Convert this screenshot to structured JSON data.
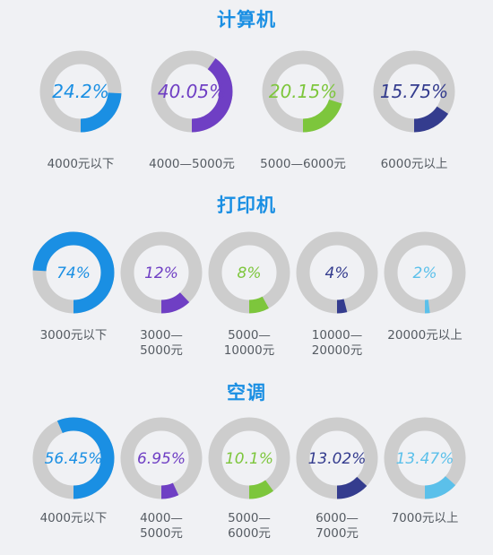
{
  "colors": {
    "title": "#1a8fe3",
    "track": "#cdcdcd",
    "blue": "#1a8fe3",
    "purple": "#6f3fc4",
    "green": "#7dc63c",
    "navy": "#343c8e",
    "lightblue": "#5bc0ea",
    "label": "#555b62"
  },
  "chart_data": [
    {
      "type": "pie",
      "title": "计算机",
      "categories": [
        [
          "4000元以下"
        ],
        [
          "4000—5000元"
        ],
        [
          "5000—6000元"
        ],
        [
          "6000元以上"
        ]
      ],
      "values": [
        24.2,
        40.05,
        20.15,
        15.75
      ],
      "value_labels": [
        "24.2%",
        "40.05%",
        "20.15%",
        "15.75%"
      ],
      "colors": [
        "blue",
        "purple",
        "green",
        "navy"
      ]
    },
    {
      "type": "pie",
      "title": "打印机",
      "categories": [
        [
          "3000元以下"
        ],
        [
          "3000—",
          "5000元"
        ],
        [
          "5000—",
          "10000元"
        ],
        [
          "10000—",
          "20000元"
        ],
        [
          "20000元以上"
        ]
      ],
      "values": [
        74,
        12,
        8,
        4,
        2
      ],
      "value_labels": [
        "74%",
        "12%",
        "8%",
        "4%",
        "2%"
      ],
      "colors": [
        "blue",
        "purple",
        "green",
        "navy",
        "lightblue"
      ]
    },
    {
      "type": "pie",
      "title": "空调",
      "categories": [
        [
          "4000元以下"
        ],
        [
          "4000—",
          "5000元"
        ],
        [
          "5000—",
          "6000元"
        ],
        [
          "6000—",
          "7000元"
        ],
        [
          "7000元以上"
        ]
      ],
      "values": [
        56.45,
        6.95,
        10.1,
        13.02,
        13.47
      ],
      "value_labels": [
        "56.45%",
        "6.95%",
        "10.1%",
        "13.02%",
        "13.47%"
      ],
      "colors": [
        "blue",
        "purple",
        "green",
        "navy",
        "lightblue"
      ]
    }
  ]
}
